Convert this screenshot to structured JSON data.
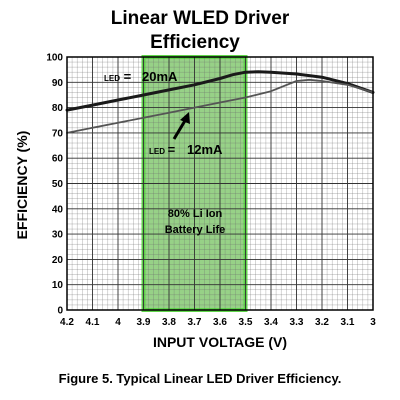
{
  "chart_data": {
    "type": "line",
    "title": [
      "Linear WLED Driver",
      "Efficiency"
    ],
    "xlabel": "INPUT VOLTAGE (V)",
    "ylabel": "EFFICIENCY (%)",
    "x_reversed": true,
    "xlim": [
      4.2,
      3.0
    ],
    "ylim": [
      0,
      100
    ],
    "x_ticks": [
      "4.2",
      "4.1",
      "4",
      "3.9",
      "3.8",
      "3.7",
      "3.6",
      "3.5",
      "3.4",
      "3.3",
      "3.2",
      "3.1",
      "3"
    ],
    "x_tick_values": [
      4.2,
      4.1,
      4.0,
      3.9,
      3.8,
      3.7,
      3.6,
      3.5,
      3.4,
      3.3,
      3.2,
      3.1,
      3.0
    ],
    "y_ticks": [
      "0",
      "10",
      "20",
      "30",
      "40",
      "50",
      "60",
      "70",
      "80",
      "90",
      "100"
    ],
    "y_tick_values": [
      0,
      10,
      20,
      30,
      40,
      50,
      60,
      70,
      80,
      90,
      100
    ],
    "grid": true,
    "series": [
      {
        "name": "20mA",
        "label_prefix": "LED",
        "label_sign": " = ",
        "color": "#1a1a1a",
        "x": [
          4.2,
          4.1,
          4.0,
          3.9,
          3.8,
          3.7,
          3.6,
          3.55,
          3.5,
          3.45,
          3.4,
          3.3,
          3.2,
          3.1,
          3.0
        ],
        "y": [
          79,
          81,
          83,
          85,
          87,
          89,
          91.5,
          93,
          94,
          94.2,
          94,
          93.3,
          92,
          89.5,
          86
        ]
      },
      {
        "name": "12mA",
        "label_prefix": "LED",
        "label_sign": " = ",
        "color": "#555555",
        "x": [
          4.2,
          4.1,
          4.0,
          3.9,
          3.8,
          3.7,
          3.6,
          3.5,
          3.4,
          3.3,
          3.25,
          3.2,
          3.1,
          3.0
        ],
        "y": [
          70,
          72,
          74,
          76,
          78,
          80,
          82,
          84,
          86.5,
          90.5,
          91,
          90.5,
          89,
          86
        ]
      }
    ],
    "shaded_region": {
      "x_range": [
        3.9,
        3.5
      ],
      "label": [
        "80% Li Ion",
        "Battery Life"
      ],
      "color": "#8ccc7a",
      "border_color": "#5fd64a"
    }
  },
  "caption": "Figure 5.  Typical Linear LED Driver Efficiency."
}
